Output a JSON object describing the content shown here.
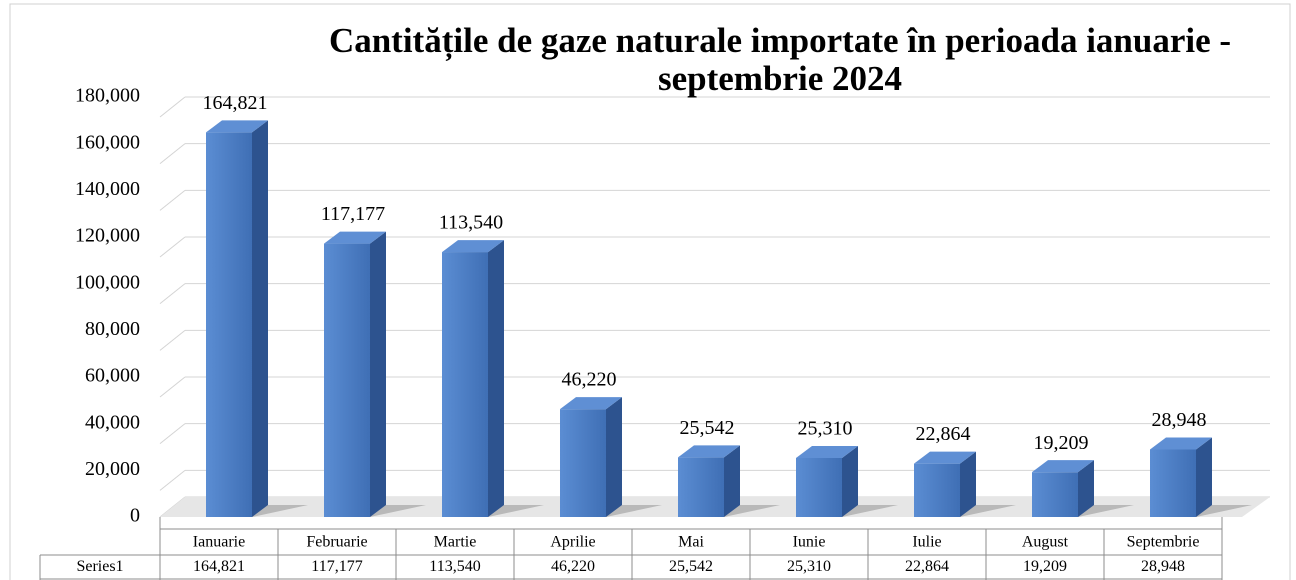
{
  "chart_data": {
    "type": "bar3d",
    "title": "Cantitățile de gaze naturale importate în perioada ianuarie - septembrie 2024",
    "categories": [
      "Ianuarie",
      "Februarie",
      "Martie",
      "Aprilie",
      "Mai",
      "Iunie",
      "Iulie",
      "August",
      "Septembrie"
    ],
    "series": [
      {
        "name": "Series1",
        "color": "#4a7cc4",
        "values": [
          164821,
          117177,
          113540,
          46220,
          25542,
          25310,
          22864,
          19209,
          28948
        ],
        "value_labels": [
          "164,821",
          "117,177",
          "113,540",
          "46,220",
          "25,542",
          "25,310",
          "22,864",
          "19,209",
          "28,948"
        ]
      }
    ],
    "ylim": [
      0,
      180000
    ],
    "yticks": [
      0,
      {
        "value": 20000,
        "label": "20,000"
      },
      {
        "value": 40000,
        "label": "40,000"
      },
      {
        "value": 60000,
        "label": "60,000"
      },
      {
        "value": 80000,
        "label": "80,000"
      },
      {
        "value": 100000,
        "label": "100,000"
      },
      {
        "value": 120000,
        "label": "120,000"
      },
      {
        "value": 140000,
        "label": "140,000"
      },
      {
        "value": 160000,
        "label": "160,000"
      },
      {
        "value": 180000,
        "label": "180,000"
      }
    ],
    "grid": true
  }
}
